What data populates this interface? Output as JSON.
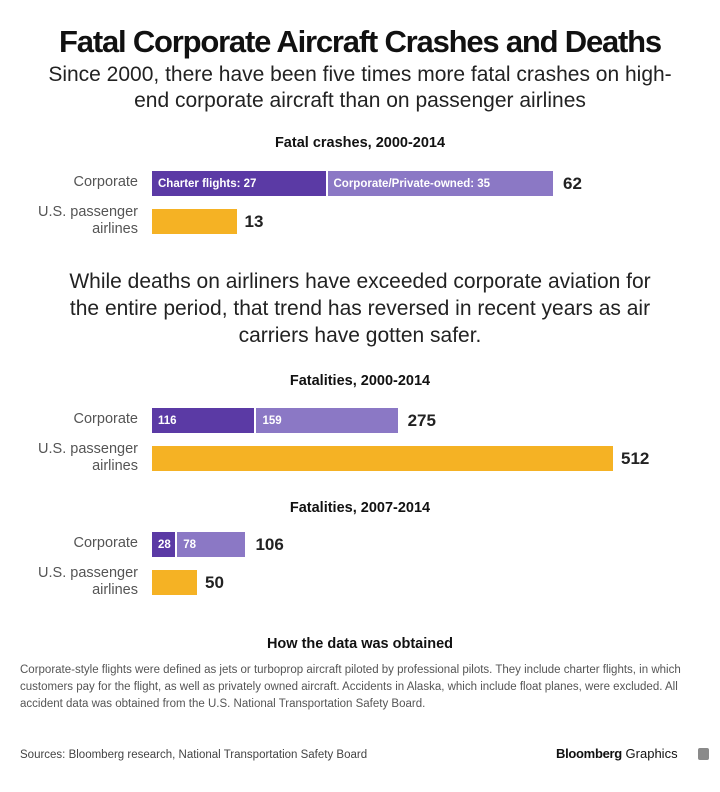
{
  "title": "Fatal Corporate  Aircraft Crashes and Deaths",
  "subtitle": "Since 2000, there have been five times more fatal crashes on high-end corporate aircraft than on passenger airlines",
  "paragraph": "While deaths on airliners have exceeded corporate aviation for the entire period, that trend has reversed in recent years as air carriers have gotten safer.",
  "colors": {
    "charter": "#5b3aa5",
    "private": "#8b78c5",
    "airlines": "#f5b224"
  },
  "chart_data": [
    {
      "type": "bar",
      "orientation": "horizontal",
      "stacked": true,
      "title": "Fatal crashes, 2000-2014",
      "categories": [
        "Corporate",
        "U.S. passenger airlines"
      ],
      "series": [
        {
          "name": "Charter flights",
          "values": [
            27,
            0
          ]
        },
        {
          "name": "Corporate/Private-owned",
          "values": [
            35,
            0
          ]
        },
        {
          "name": "U.S. passenger airlines",
          "values": [
            0,
            13
          ]
        }
      ],
      "segment_labels": [
        [
          "Charter flights: 27",
          "Corporate/Private-owned: 35"
        ],
        []
      ],
      "totals": [
        62,
        13
      ],
      "xlim": [
        0,
        62
      ]
    },
    {
      "type": "bar",
      "orientation": "horizontal",
      "stacked": true,
      "title": "Fatalities, 2000-2014",
      "categories": [
        "Corporate",
        "U.S. passenger airlines"
      ],
      "series": [
        {
          "name": "Charter flights",
          "values": [
            116,
            0
          ]
        },
        {
          "name": "Corporate/Private-owned",
          "values": [
            159,
            0
          ]
        },
        {
          "name": "U.S. passenger airlines",
          "values": [
            0,
            512
          ]
        }
      ],
      "segment_labels": [
        [
          "116",
          "159"
        ],
        []
      ],
      "totals": [
        275,
        512
      ],
      "xlim": [
        0,
        512
      ]
    },
    {
      "type": "bar",
      "orientation": "horizontal",
      "stacked": true,
      "title": "Fatalities, 2007-2014",
      "categories": [
        "Corporate",
        "U.S. passenger airlines"
      ],
      "series": [
        {
          "name": "Charter flights",
          "values": [
            28,
            0
          ]
        },
        {
          "name": "Corporate/Private-owned",
          "values": [
            78,
            0
          ]
        },
        {
          "name": "U.S. passenger airlines",
          "values": [
            0,
            50
          ]
        }
      ],
      "segment_labels": [
        [
          "28",
          "78"
        ],
        []
      ],
      "totals": [
        106,
        50
      ],
      "xlim": [
        0,
        512
      ]
    }
  ],
  "how_title": "How the data was obtained",
  "note": "Corporate-style flights were defined as jets or turboprop aircraft piloted by professional pilots. They include charter flights, in which customers pay for the flight, as well as privately owned aircraft. Accidents in Alaska, which include float planes, were excluded. All accident data was obtained from the U.S. National Transportation Safety Board.",
  "sources": "Sources:  Bloomberg research, National Transportation Safety Board",
  "logo": {
    "brand": "Bloomberg",
    "suffix": "Graphics"
  }
}
